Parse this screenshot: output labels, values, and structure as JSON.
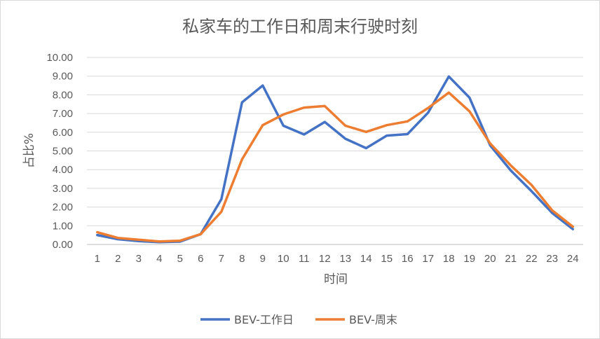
{
  "chart_data": {
    "type": "line",
    "title": "私家车的工作日和周末行驶时刻",
    "xlabel": "时间",
    "ylabel": "占比%",
    "ylim": [
      0,
      10
    ],
    "grid": true,
    "legend_position": "bottom",
    "categories": [
      "1",
      "2",
      "3",
      "4",
      "5",
      "6",
      "7",
      "8",
      "9",
      "10",
      "11",
      "12",
      "13",
      "14",
      "15",
      "16",
      "17",
      "18",
      "19",
      "20",
      "21",
      "22",
      "23",
      "24"
    ],
    "y_ticks": [
      "0.00",
      "1.00",
      "2.00",
      "3.00",
      "4.00",
      "5.00",
      "6.00",
      "7.00",
      "8.00",
      "9.00",
      "10.00"
    ],
    "series": [
      {
        "name": "BEV-工作日",
        "color": "#4472c4",
        "values": [
          0.5,
          0.28,
          0.18,
          0.12,
          0.15,
          0.55,
          2.42,
          7.6,
          8.5,
          6.35,
          5.88,
          6.55,
          5.65,
          5.15,
          5.82,
          5.9,
          7.05,
          8.98,
          7.85,
          5.3,
          3.95,
          2.85,
          1.68,
          0.82
        ]
      },
      {
        "name": "BEV-周末",
        "color": "#ed7d31",
        "values": [
          0.65,
          0.35,
          0.25,
          0.16,
          0.2,
          0.55,
          1.75,
          4.55,
          6.38,
          6.95,
          7.32,
          7.4,
          6.35,
          6.02,
          6.38,
          6.58,
          7.3,
          8.12,
          7.12,
          5.4,
          4.22,
          3.18,
          1.82,
          0.95
        ]
      }
    ]
  }
}
